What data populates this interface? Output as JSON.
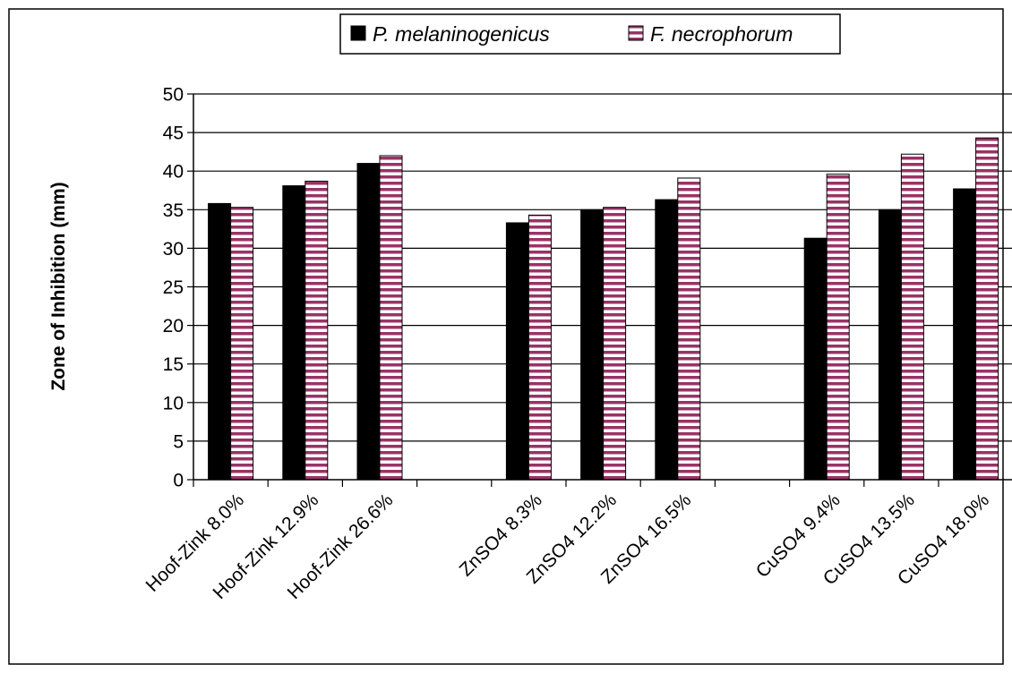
{
  "chart_data": {
    "type": "bar",
    "title": "",
    "xlabel": "",
    "ylabel": "Zone of Inhibition (mm)",
    "ylim": [
      0,
      50
    ],
    "ytick_step": 5,
    "yticks": [
      "0",
      "5",
      "10",
      "15",
      "20",
      "25",
      "30",
      "35",
      "40",
      "45",
      "50"
    ],
    "grid": true,
    "legend_position": "top",
    "categories": [
      "Hoof-Zink 8.0%",
      "Hoof-Zink 12.9%",
      "Hoof-Zink 26.6%",
      "",
      "ZnSO4 8.3%",
      "ZnSO4 12.2%",
      "ZnSO4 16.5%",
      "",
      "CuSO4 9.4%",
      "CuSO4 13.5%",
      "CuSO4 18.0%"
    ],
    "series": [
      {
        "name": "P. melaninogenicus",
        "color": "#000000",
        "fill": "solid",
        "values": [
          35.8,
          38.1,
          41.0,
          null,
          33.3,
          35.0,
          36.3,
          null,
          31.3,
          35.0,
          37.7
        ]
      },
      {
        "name": "F. necrophorum",
        "color": "#993366",
        "fill": "horizontal-stripes",
        "values": [
          35.3,
          38.7,
          42.0,
          null,
          34.3,
          35.3,
          39.1,
          null,
          39.6,
          42.2,
          44.3
        ]
      }
    ]
  }
}
